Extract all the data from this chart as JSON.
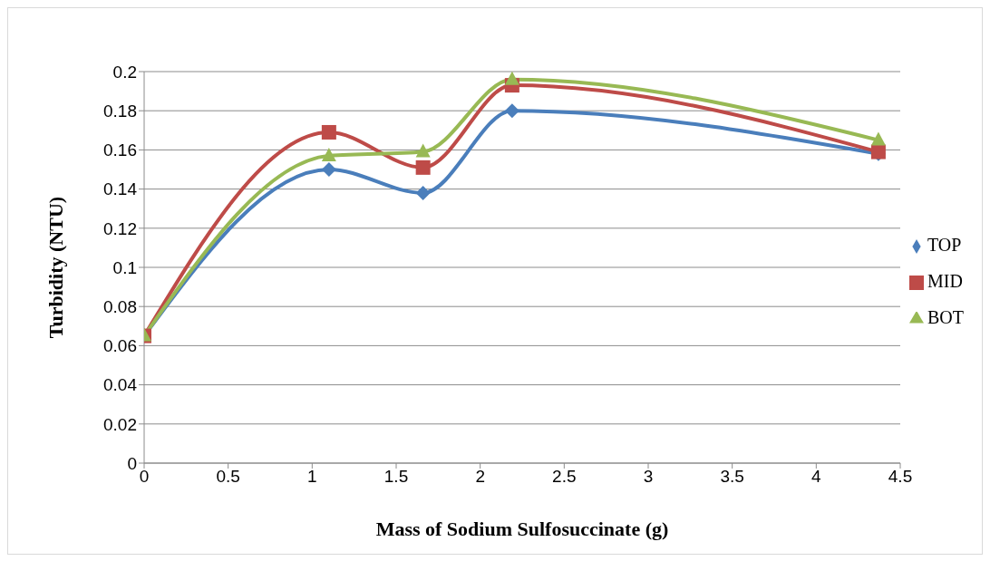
{
  "chart_data": {
    "type": "line",
    "xlabel": "Mass of Sodium Sulfosuccinate (g)",
    "ylabel": "Turbidity (NTU)",
    "x": [
      0,
      1.1,
      1.66,
      2.19,
      4.37
    ],
    "series": [
      {
        "name": "TOP",
        "color": "#4a7ebb",
        "marker": "diamond",
        "values": [
          0.065,
          0.15,
          0.138,
          0.18,
          0.158
        ]
      },
      {
        "name": "MID",
        "color": "#be4b48",
        "marker": "square",
        "values": [
          0.065,
          0.169,
          0.151,
          0.193,
          0.159
        ]
      },
      {
        "name": "BOT",
        "color": "#98b954",
        "marker": "triangle",
        "values": [
          0.065,
          0.157,
          0.159,
          0.196,
          0.165
        ]
      }
    ],
    "xlim": [
      0,
      4.5
    ],
    "xticks": [
      0,
      0.5,
      1,
      1.5,
      2,
      2.5,
      3,
      3.5,
      4,
      4.5
    ],
    "ylim": [
      0,
      0.2
    ],
    "yticks": [
      0,
      0.02,
      0.04,
      0.06,
      0.08,
      0.1,
      0.12,
      0.14,
      0.16,
      0.18,
      0.2
    ],
    "grid": "y",
    "legend": "right",
    "line_style": "solid"
  }
}
